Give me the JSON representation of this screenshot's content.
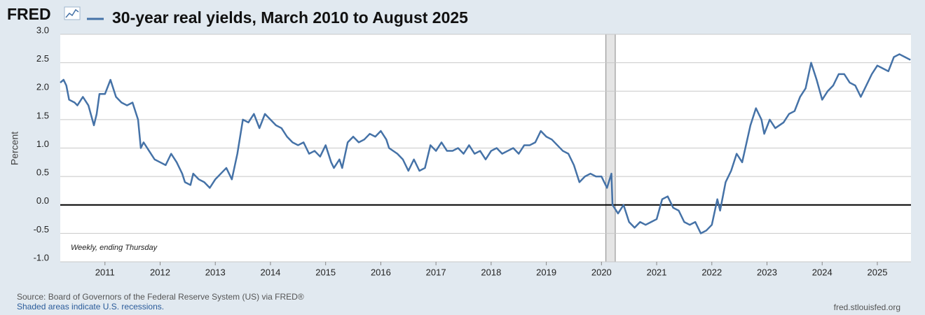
{
  "logo": "FRED",
  "chart_data": {
    "type": "line",
    "title": "30-year real yields, March 2010 to August 2025",
    "y_label": "Percent",
    "annotation": "Weekly, ending Thursday",
    "source": "Source: Board of Governors of the Federal Reserve System (US) via FRED®",
    "note": "Shaded areas indicate U.S. recessions.",
    "site": "fred.stlouisfed.org",
    "color": "#4572a7",
    "grid": true,
    "recessions": [
      {
        "start": 2020.08,
        "end": 2020.25
      }
    ],
    "xlim": [
      2010.19,
      2025.61
    ],
    "xticks": [
      2011,
      2012,
      2013,
      2014,
      2015,
      2016,
      2017,
      2018,
      2019,
      2020,
      2021,
      2022,
      2023,
      2024,
      2025
    ],
    "ylim": [
      -1,
      3
    ],
    "yticks": [
      {
        "value": -1,
        "label": "-1.0"
      },
      -0.5,
      {
        "value": 0,
        "label": "0.0"
      },
      0.5,
      {
        "value": 1,
        "label": "1.0"
      },
      1.5,
      {
        "value": 2,
        "label": "2.0"
      },
      2.5,
      {
        "value": 3,
        "label": "3.0"
      }
    ],
    "x": [
      2010.19,
      2010.25,
      2010.3,
      2010.35,
      2010.45,
      2010.5,
      2010.6,
      2010.7,
      2010.8,
      2010.85,
      2010.9,
      2011.0,
      2011.1,
      2011.2,
      2011.3,
      2011.4,
      2011.5,
      2011.6,
      2011.65,
      2011.7,
      2011.8,
      2011.9,
      2012.0,
      2012.1,
      2012.2,
      2012.3,
      2012.4,
      2012.45,
      2012.55,
      2012.6,
      2012.7,
      2012.8,
      2012.9,
      2013.0,
      2013.1,
      2013.2,
      2013.3,
      2013.4,
      2013.5,
      2013.6,
      2013.7,
      2013.8,
      2013.9,
      2014.0,
      2014.1,
      2014.2,
      2014.3,
      2014.4,
      2014.5,
      2014.6,
      2014.7,
      2014.8,
      2014.9,
      2015.0,
      2015.1,
      2015.15,
      2015.25,
      2015.3,
      2015.4,
      2015.5,
      2015.6,
      2015.7,
      2015.8,
      2015.9,
      2016.0,
      2016.1,
      2016.15,
      2016.3,
      2016.4,
      2016.5,
      2016.6,
      2016.7,
      2016.8,
      2016.9,
      2017.0,
      2017.1,
      2017.2,
      2017.3,
      2017.4,
      2017.5,
      2017.6,
      2017.7,
      2017.8,
      2017.9,
      2018.0,
      2018.1,
      2018.2,
      2018.3,
      2018.4,
      2018.5,
      2018.6,
      2018.7,
      2018.8,
      2018.9,
      2019.0,
      2019.1,
      2019.2,
      2019.3,
      2019.4,
      2019.5,
      2019.6,
      2019.7,
      2019.8,
      2019.9,
      2020.0,
      2020.1,
      2020.18,
      2020.2,
      2020.3,
      2020.4,
      2020.5,
      2020.6,
      2020.7,
      2020.8,
      2020.9,
      2021.0,
      2021.1,
      2021.2,
      2021.3,
      2021.4,
      2021.5,
      2021.6,
      2021.7,
      2021.8,
      2021.9,
      2022.0,
      2022.1,
      2022.15,
      2022.25,
      2022.35,
      2022.45,
      2022.55,
      2022.7,
      2022.8,
      2022.9,
      2022.95,
      2023.05,
      2023.15,
      2023.3,
      2023.4,
      2023.5,
      2023.6,
      2023.7,
      2023.8,
      2023.9,
      2024.0,
      2024.1,
      2024.2,
      2024.3,
      2024.4,
      2024.5,
      2024.6,
      2024.7,
      2024.8,
      2024.9,
      2025.0,
      2025.1,
      2025.2,
      2025.3,
      2025.4,
      2025.5,
      2025.6
    ],
    "values": [
      2.15,
      2.2,
      2.1,
      1.85,
      1.8,
      1.75,
      1.9,
      1.75,
      1.4,
      1.6,
      1.95,
      1.95,
      2.2,
      1.9,
      1.8,
      1.75,
      1.8,
      1.5,
      1.0,
      1.1,
      0.95,
      0.8,
      0.75,
      0.7,
      0.9,
      0.75,
      0.55,
      0.4,
      0.35,
      0.55,
      0.45,
      0.4,
      0.3,
      0.45,
      0.55,
      0.65,
      0.45,
      0.9,
      1.5,
      1.45,
      1.6,
      1.35,
      1.6,
      1.5,
      1.4,
      1.35,
      1.2,
      1.1,
      1.05,
      1.1,
      0.9,
      0.95,
      0.85,
      1.05,
      0.75,
      0.65,
      0.8,
      0.65,
      1.1,
      1.2,
      1.1,
      1.15,
      1.25,
      1.2,
      1.3,
      1.15,
      1.0,
      0.9,
      0.8,
      0.6,
      0.8,
      0.6,
      0.65,
      1.05,
      0.95,
      1.1,
      0.95,
      0.95,
      1.0,
      0.9,
      1.05,
      0.9,
      0.95,
      0.8,
      0.95,
      1.0,
      0.9,
      0.95,
      1.0,
      0.9,
      1.05,
      1.05,
      1.1,
      1.3,
      1.2,
      1.15,
      1.05,
      0.95,
      0.9,
      0.7,
      0.4,
      0.5,
      0.55,
      0.5,
      0.5,
      0.3,
      0.55,
      0.0,
      -0.15,
      0.0,
      -0.3,
      -0.4,
      -0.3,
      -0.35,
      -0.3,
      -0.25,
      0.1,
      0.15,
      -0.05,
      -0.1,
      -0.3,
      -0.35,
      -0.3,
      -0.5,
      -0.45,
      -0.35,
      0.1,
      -0.1,
      0.4,
      0.6,
      0.9,
      0.75,
      1.4,
      1.7,
      1.5,
      1.25,
      1.5,
      1.35,
      1.45,
      1.6,
      1.65,
      1.9,
      2.05,
      2.5,
      2.2,
      1.85,
      2.0,
      2.1,
      2.3,
      2.3,
      2.15,
      2.1,
      1.9,
      2.1,
      2.3,
      2.45,
      2.4,
      2.35,
      2.6,
      2.65,
      2.6,
      2.55
    ]
  }
}
